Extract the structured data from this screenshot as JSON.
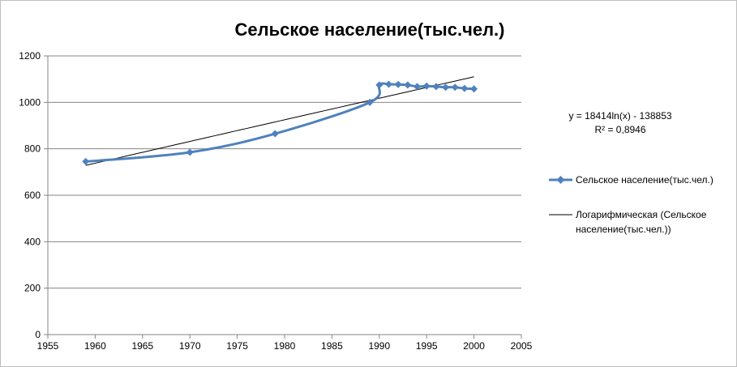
{
  "chart_data": {
    "type": "line",
    "title": "Сельское население(тыс.чел.)",
    "xlabel": "",
    "ylabel": "",
    "xlim": [
      1955,
      2005
    ],
    "ylim": [
      0,
      1200
    ],
    "x_ticks": [
      "1955",
      "1960",
      "1965",
      "1970",
      "1975",
      "1980",
      "1985",
      "1990",
      "1995",
      "2000",
      "2005"
    ],
    "y_ticks": [
      "0",
      "200",
      "400",
      "600",
      "800",
      "1000",
      "1200"
    ],
    "grid": true,
    "legend_position": "right",
    "series": [
      {
        "name": "Сельское население(тыс.чел.)",
        "color": "#4F81BD",
        "marker": "diamond",
        "smooth": true,
        "x": [
          1959,
          1970,
          1979,
          1989,
          1990,
          1991,
          1992,
          1993,
          1994,
          1995,
          1996,
          1997,
          1998,
          1999,
          2000
        ],
        "y": [
          745,
          785,
          865,
          1000,
          1075,
          1078,
          1077,
          1075,
          1068,
          1070,
          1068,
          1065,
          1065,
          1060,
          1058
        ]
      }
    ],
    "trendline": {
      "name": "Логарифмическая (Сельское население(тыс.чел.))",
      "name_lines": [
        "Логарифмическая (Сельское",
        "население(тыс.чел.))"
      ],
      "color": "#000000",
      "type": "logarithmic",
      "a": 18414,
      "b": -138853,
      "x_from": 1959,
      "x_to": 2000,
      "equation": "y = 18414ln(x) - 138853",
      "r_squared": "R² = 0,8946"
    }
  }
}
